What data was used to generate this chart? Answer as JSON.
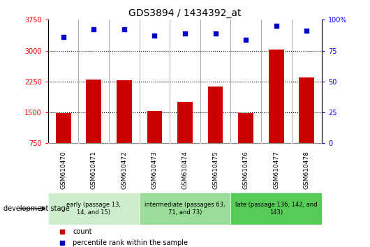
{
  "title": "GDS3894 / 1434392_at",
  "samples": [
    "GSM610470",
    "GSM610471",
    "GSM610472",
    "GSM610473",
    "GSM610474",
    "GSM610475",
    "GSM610476",
    "GSM610477",
    "GSM610478"
  ],
  "counts": [
    1490,
    2290,
    2280,
    1530,
    1760,
    2120,
    1490,
    3020,
    2350
  ],
  "percentile_ranks": [
    86,
    92,
    92,
    87,
    89,
    89,
    84,
    95,
    91
  ],
  "ylim_left": [
    750,
    3750
  ],
  "ylim_right": [
    0,
    100
  ],
  "yticks_left": [
    750,
    1500,
    2250,
    3000,
    3750
  ],
  "yticks_right": [
    0,
    25,
    50,
    75,
    100
  ],
  "bar_color": "#cc0000",
  "scatter_color": "#0000cc",
  "group_defs": [
    {
      "start": 0,
      "end": 2,
      "label": "early (passage 13,\n14, and 15)",
      "color": "#cceecc"
    },
    {
      "start": 3,
      "end": 5,
      "label": "intermediate (passages 63,\n71, and 73)",
      "color": "#99dd99"
    },
    {
      "start": 6,
      "end": 8,
      "label": "late (passage 136, 142, and\n143)",
      "color": "#55cc55"
    }
  ],
  "legend_count_color": "#cc0000",
  "legend_percentile_color": "#0000cc",
  "xlabel_label": "development stage",
  "plot_bg_color": "#ffffff",
  "xtick_bg_color": "#d8d8d8"
}
